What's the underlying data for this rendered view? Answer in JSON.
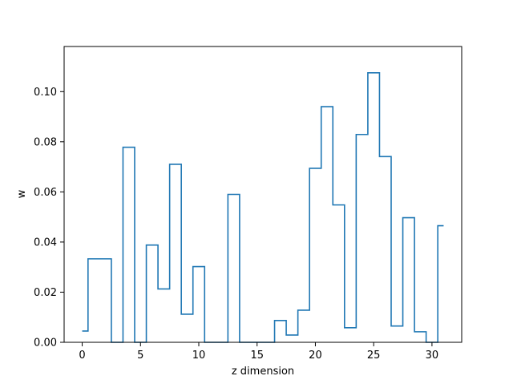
{
  "chart_data": {
    "type": "step",
    "title": "",
    "xlabel": "z dimension",
    "ylabel": "w",
    "xlim": [
      -1.55,
      32.55
    ],
    "ylim": [
      0,
      0.118
    ],
    "x_ticks": [
      0,
      5,
      10,
      15,
      20,
      25,
      30
    ],
    "x_tick_labels": [
      "0",
      "5",
      "10",
      "15",
      "20",
      "25",
      "30"
    ],
    "y_ticks": [
      0.0,
      0.02,
      0.04,
      0.06,
      0.08,
      0.1
    ],
    "y_tick_labels": [
      "0.00",
      "0.02",
      "0.04",
      "0.06",
      "0.08",
      "0.10"
    ],
    "grid": false,
    "step_where": "mid",
    "line_color": "#1f77b4",
    "series": [
      {
        "x": [
          0,
          1,
          2,
          3,
          4,
          5,
          6,
          7,
          8,
          9,
          10,
          11,
          12,
          13,
          14,
          15,
          16,
          17,
          18,
          19,
          20,
          21,
          22,
          23,
          24,
          25,
          26,
          27,
          28,
          29,
          30,
          31
        ],
        "values": [
          0.0045,
          0.0333,
          0.0333,
          0.0,
          0.0778,
          0.0,
          0.0388,
          0.0213,
          0.071,
          0.0112,
          0.0302,
          0.0,
          0.0,
          0.059,
          0.0,
          0.0,
          0.0,
          0.0087,
          0.0029,
          0.0128,
          0.0694,
          0.094,
          0.0548,
          0.0058,
          0.0829,
          0.1075,
          0.0741,
          0.0065,
          0.0497,
          0.0042,
          0.0,
          0.0465
        ]
      }
    ]
  }
}
